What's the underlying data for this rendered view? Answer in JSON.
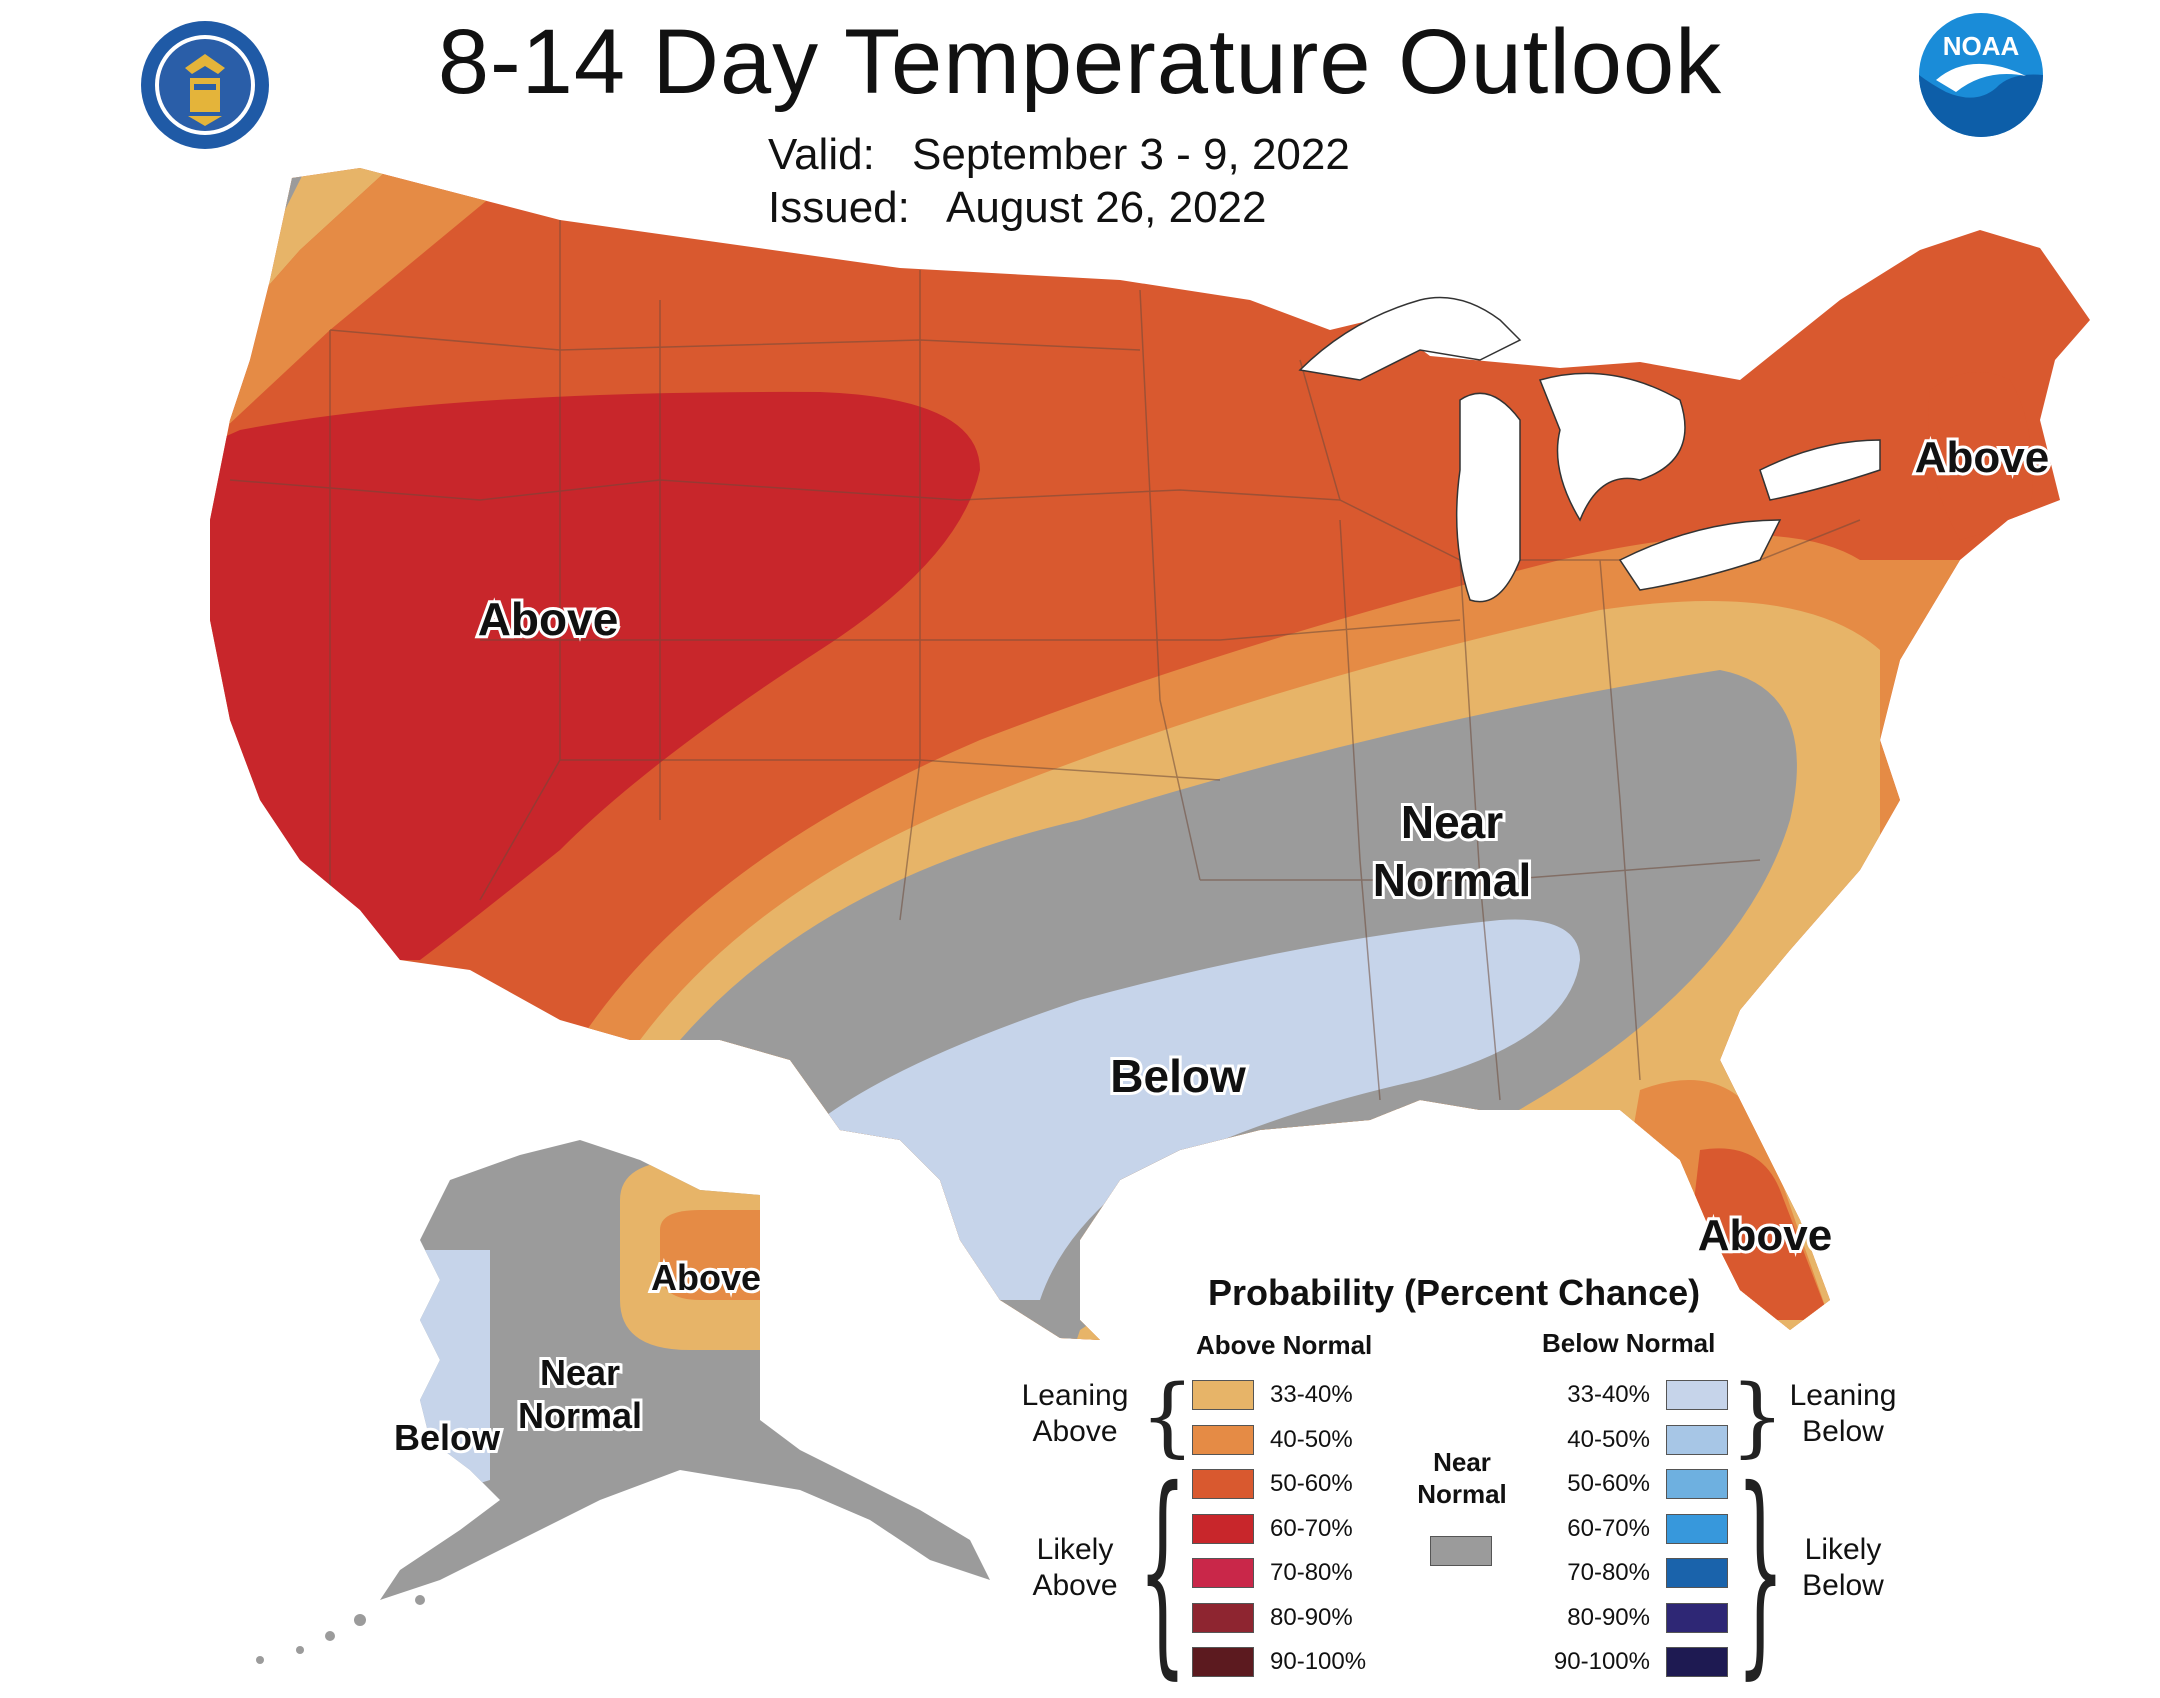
{
  "title": "8-14 Day Temperature Outlook",
  "valid_label": "Valid:",
  "valid_value": "September 3 - 9, 2022",
  "issued_label": "Issued:",
  "issued_value": "August 26, 2022",
  "logos": {
    "left": "department-of-commerce-seal",
    "right": "noaa-logo",
    "right_text": "NOAA"
  },
  "region_labels": {
    "west_above": "Above",
    "northeast_above": "Above",
    "florida_above": "Above",
    "central_near_line1": "Near",
    "central_near_line2": "Normal",
    "south_below": "Below",
    "alaska_above": "Above",
    "alaska_near_line1": "Near",
    "alaska_near_line2": "Normal",
    "alaska_below": "Below"
  },
  "legend": {
    "title": "Probability (Percent Chance)",
    "above_header": "Above Normal",
    "below_header": "Below Normal",
    "near_line1": "Near",
    "near_line2": "Normal",
    "near_color": "#9b9b9b",
    "leaning_above_1": "Leaning",
    "leaning_above_2": "Above",
    "likely_above_1": "Likely",
    "likely_above_2": "Above",
    "leaning_below_1": "Leaning",
    "leaning_below_2": "Below",
    "likely_below_1": "Likely",
    "likely_below_2": "Below",
    "above": [
      {
        "range": "33-40%",
        "color": "#e7b468"
      },
      {
        "range": "40-50%",
        "color": "#e58b45"
      },
      {
        "range": "50-60%",
        "color": "#d9592f"
      },
      {
        "range": "60-70%",
        "color": "#c8262b"
      },
      {
        "range": "70-80%",
        "color": "#c92749"
      },
      {
        "range": "80-90%",
        "color": "#8e2530"
      },
      {
        "range": "90-100%",
        "color": "#5c1a1f"
      }
    ],
    "below": [
      {
        "range": "33-40%",
        "color": "#c6d4ea"
      },
      {
        "range": "40-50%",
        "color": "#a7c6e6"
      },
      {
        "range": "50-60%",
        "color": "#6eb0e0"
      },
      {
        "range": "60-70%",
        "color": "#3798dc"
      },
      {
        "range": "70-80%",
        "color": "#1a63ab"
      },
      {
        "range": "80-90%",
        "color": "#2e2775"
      },
      {
        "range": "90-100%",
        "color": "#1e1a52"
      }
    ]
  }
}
